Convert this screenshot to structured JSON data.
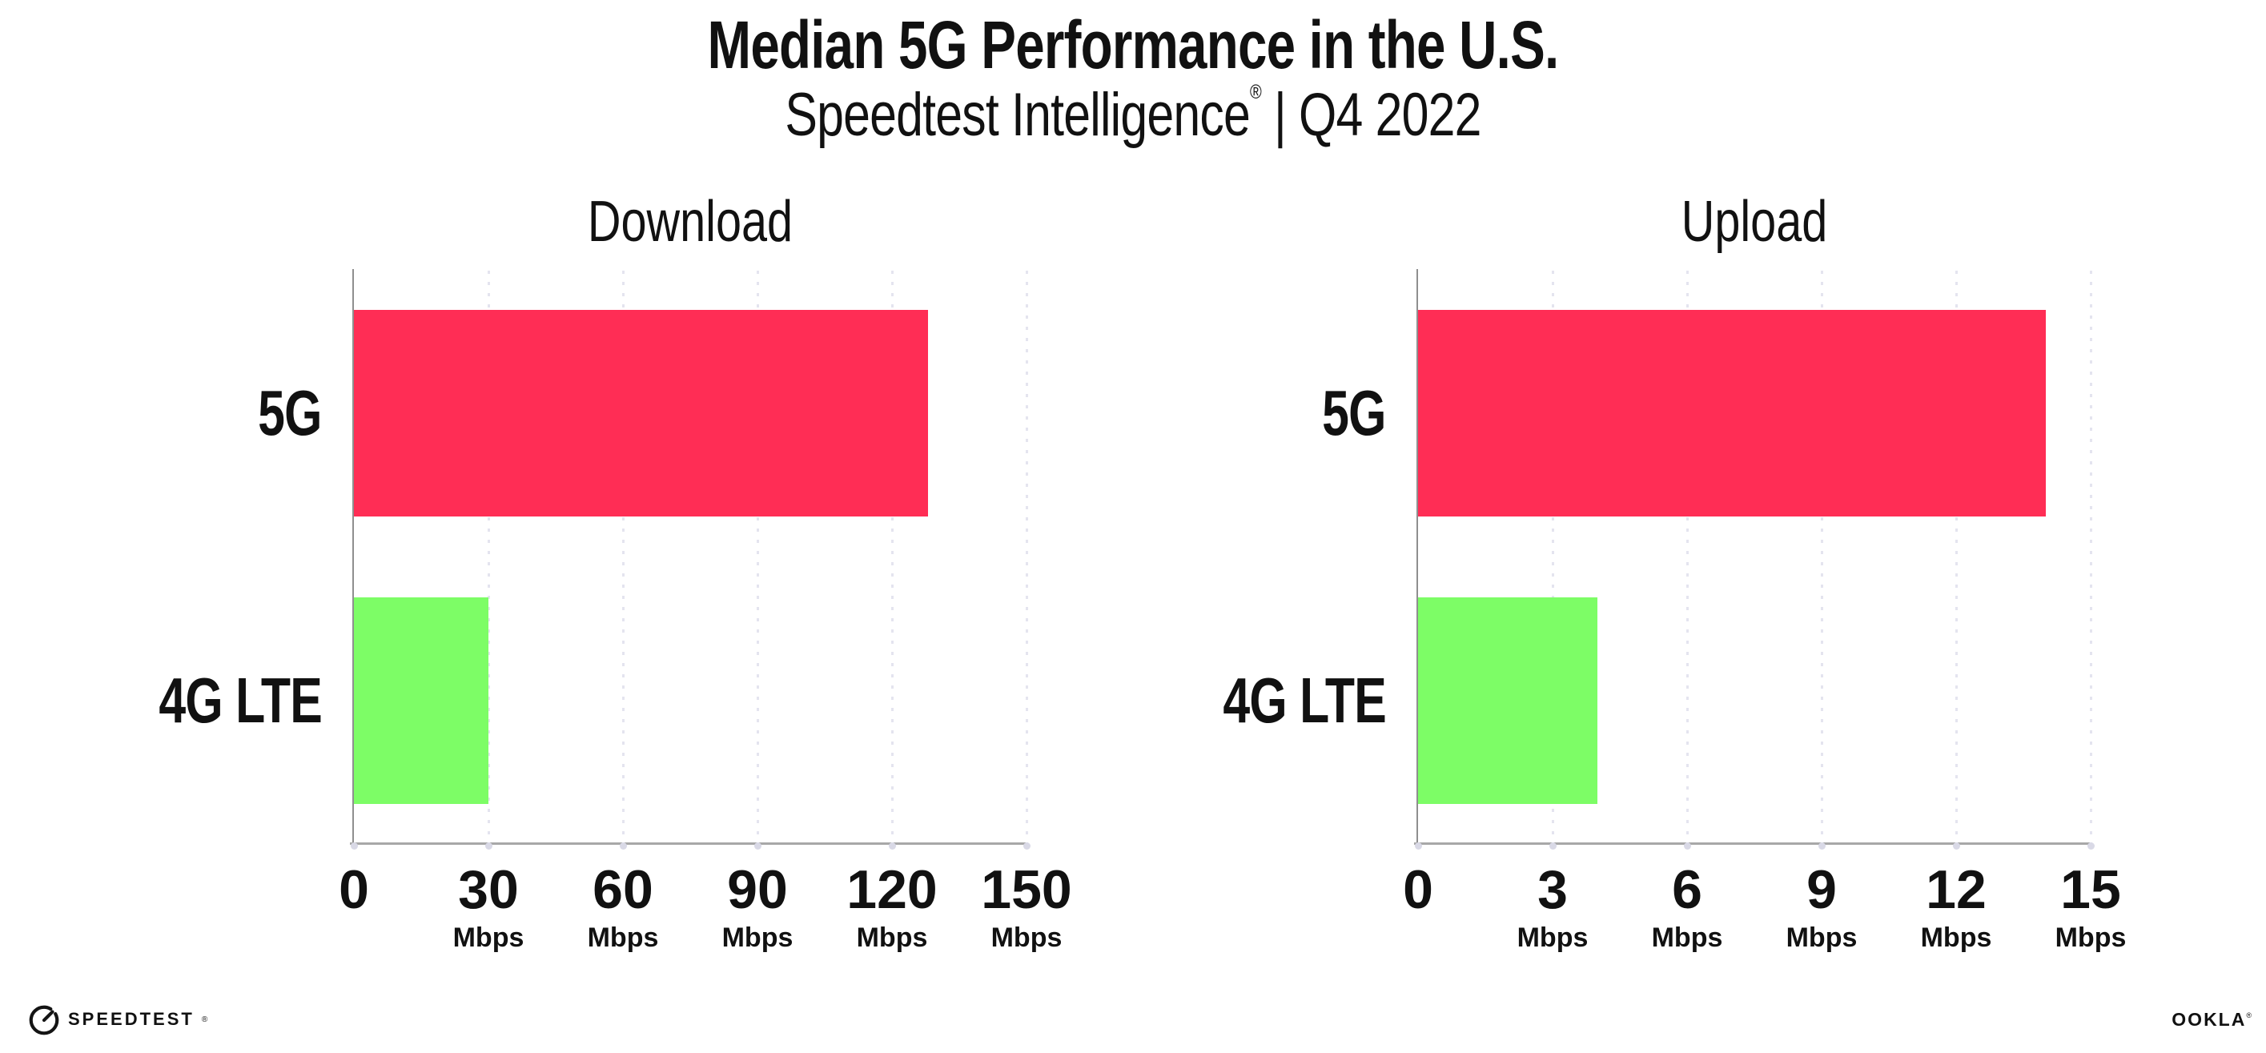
{
  "header": {
    "title": "Median 5G Performance in the U.S.",
    "subtitle_brand": "Speedtest Intelligence",
    "subtitle_reg": "®",
    "subtitle_separator": "|",
    "subtitle_period": "Q4 2022"
  },
  "chart_data": [
    {
      "type": "bar",
      "orientation": "horizontal",
      "title": "Download",
      "categories": [
        "5G",
        "4G LTE"
      ],
      "values": [
        128,
        30
      ],
      "unit": "Mbps",
      "xlim": [
        0,
        150
      ],
      "xticks": [
        0,
        30,
        60,
        90,
        120,
        150
      ],
      "bar_colors": [
        "#FF2D55",
        "#7DFD66"
      ],
      "grid": "vertical dotted",
      "legend": "none"
    },
    {
      "type": "bar",
      "orientation": "horizontal",
      "title": "Upload",
      "categories": [
        "5G",
        "4G LTE"
      ],
      "values": [
        14,
        4
      ],
      "unit": "Mbps",
      "xlim": [
        0,
        15
      ],
      "xticks": [
        0,
        3,
        6,
        9,
        12,
        15
      ],
      "bar_colors": [
        "#FF2D55",
        "#7DFD66"
      ],
      "grid": "vertical dotted",
      "legend": "none"
    }
  ],
  "footer": {
    "speedtest_wordmark": "SPEEDTEST",
    "speedtest_mark": "®",
    "ookla_wordmark": "OOKLA",
    "ookla_mark": "®"
  },
  "colors": {
    "bar_5g": "#FF2D55",
    "bar_4g_lte": "#7DFD66",
    "axis_line": "#9B9B9B",
    "gridline_dots": "#E4E4EF",
    "text": "#111111",
    "background": "#FFFFFF"
  }
}
